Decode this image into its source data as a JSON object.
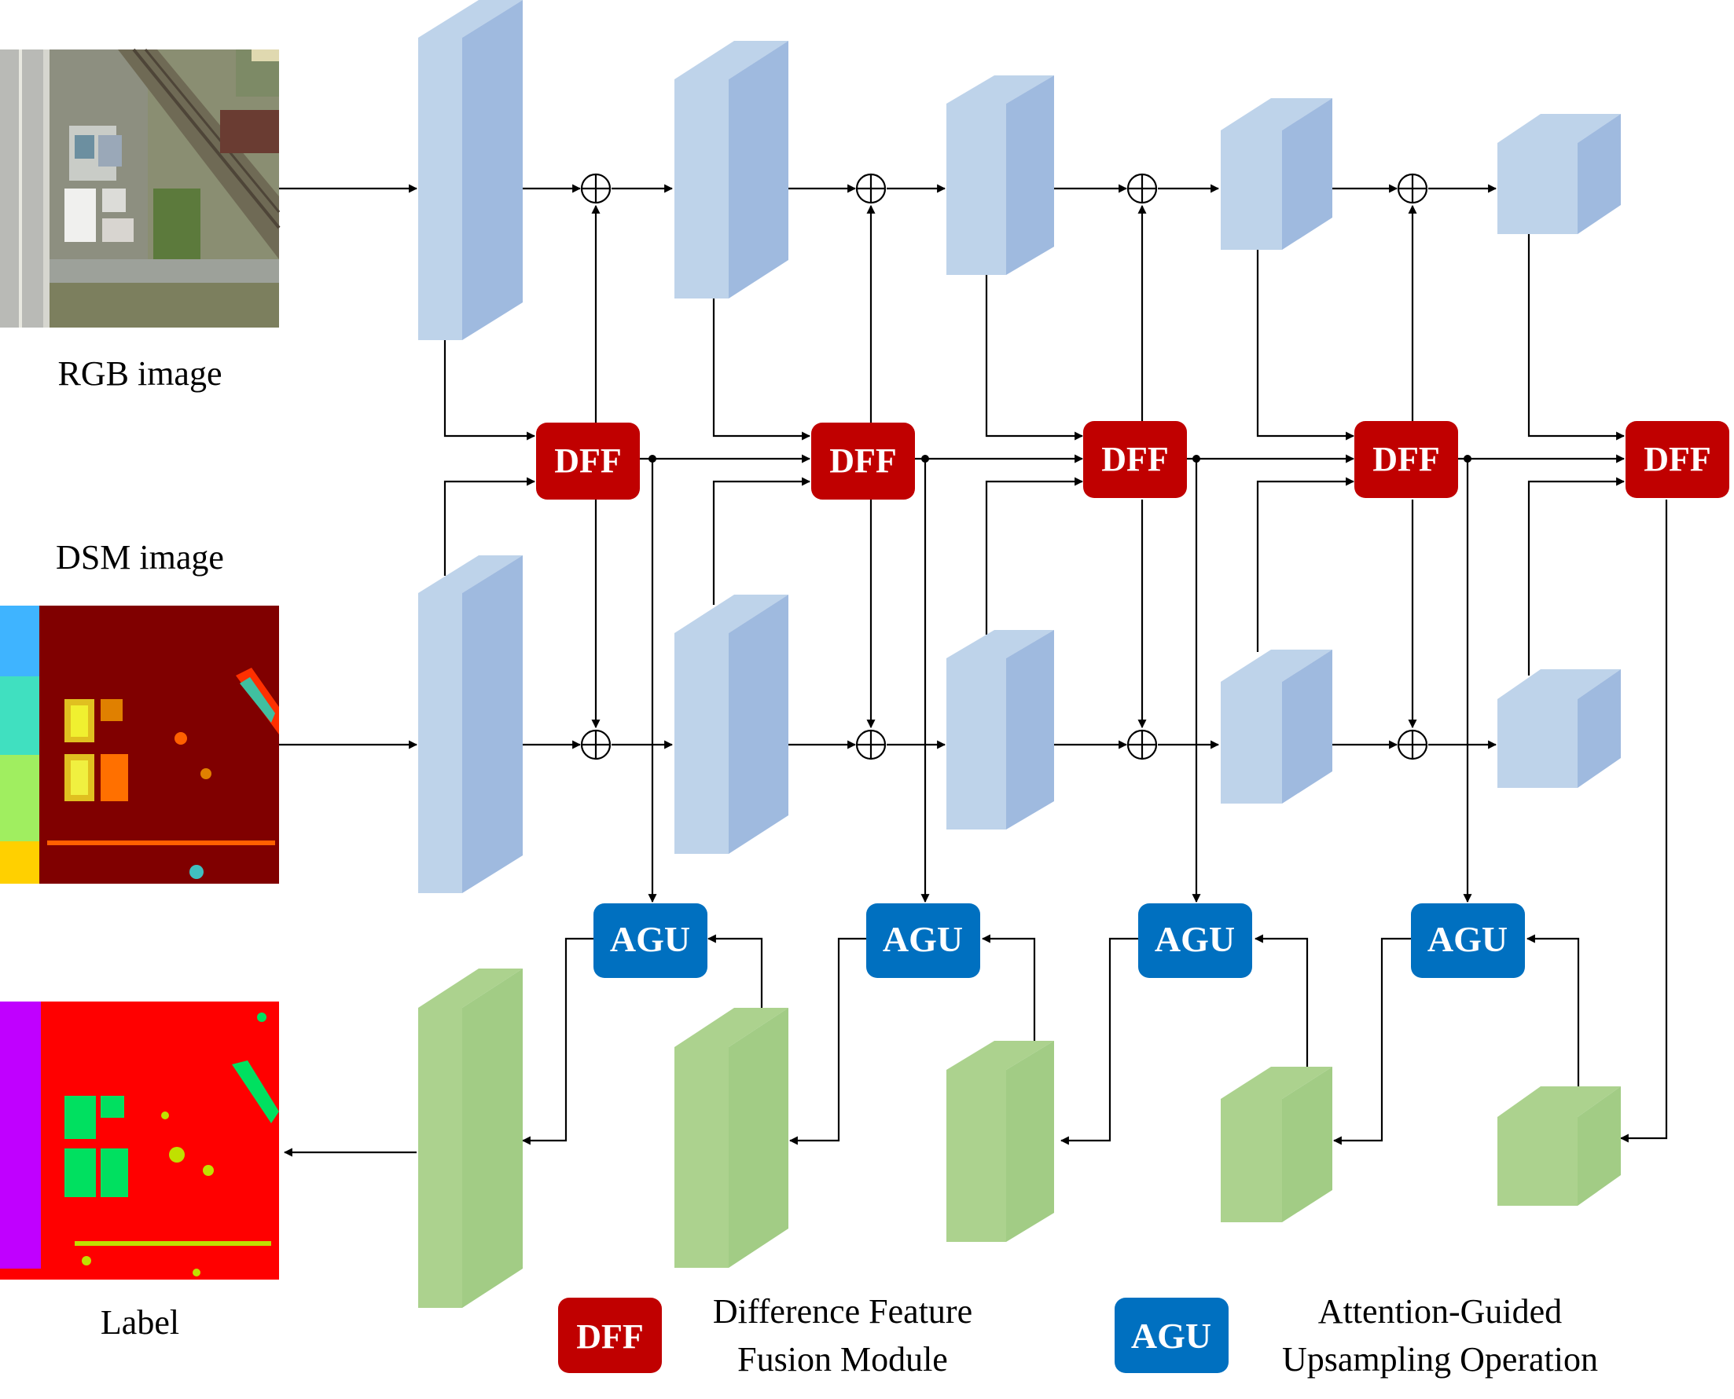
{
  "inputs": {
    "rgb_caption": "RGB image",
    "dsm_caption": "DSM image",
    "label_caption": "Label"
  },
  "modules": {
    "dff_label": "DFF",
    "agu_label": "AGU"
  },
  "legend": {
    "dff_label": "DFF",
    "dff_line1": "Difference Feature",
    "dff_line2": "Fusion Module",
    "agu_label": "AGU",
    "agu_line1": "Attention-Guided",
    "agu_line2": "Upsampling Operation"
  },
  "colors": {
    "rgb_encoder_front": "#bed3ea",
    "rgb_encoder_side": "#9fbadf",
    "decoder_front": "#acd28e",
    "decoder_side": "#a2cc85",
    "dff_fill": "#c00000",
    "agu_fill": "#0070c0",
    "dsm_background": "#800000",
    "label_background": "#ff0000",
    "label_building": "#00e060",
    "label_vegetation": "#c0e000",
    "label_road": "#c000ff"
  },
  "icons": {
    "sum_node": "circle-plus-icon",
    "arrow": "arrowhead-icon"
  }
}
